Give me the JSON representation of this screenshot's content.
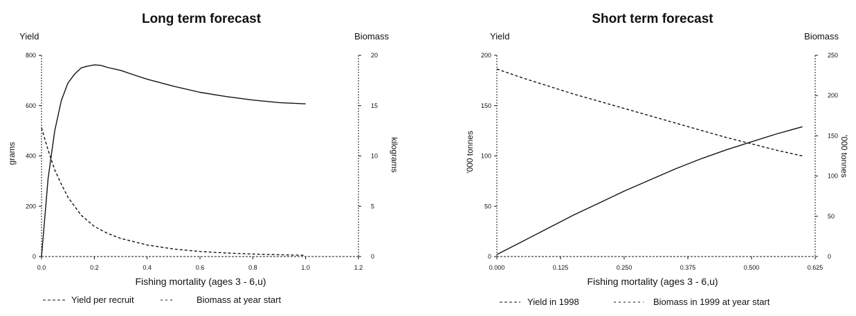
{
  "chart_data": [
    {
      "type": "line",
      "title": "Long term forecast",
      "yleft_header": "Yield",
      "yright_header": "Biomass",
      "ylabel_left": "grams",
      "ylabel_right": "kilograms",
      "xlabel": "Fishing mortality (ages 3 - 6,u)",
      "xlim": [
        0,
        1.2
      ],
      "ylim_left": [
        0,
        800
      ],
      "ylim_right": [
        0,
        20
      ],
      "xticks": [
        "0.0",
        "0.2",
        "0.4",
        "0.6",
        "0.8",
        "1.0",
        "1.2"
      ],
      "yticks_left": [
        "0",
        "200",
        "400",
        "600",
        "800"
      ],
      "yticks_right": [
        "0",
        "5",
        "10",
        "15",
        "20"
      ],
      "grid": false,
      "legend_position": "bottom",
      "series": [
        {
          "name": "Yield per recruit",
          "axis": "left",
          "style": "solid",
          "x": [
            0,
            0.025,
            0.05,
            0.075,
            0.1,
            0.125,
            0.15,
            0.175,
            0.2,
            0.225,
            0.25,
            0.3,
            0.35,
            0.4,
            0.5,
            0.6,
            0.7,
            0.8,
            0.9,
            1.0
          ],
          "y": [
            0,
            310,
            500,
            620,
            690,
            725,
            750,
            757,
            762,
            760,
            752,
            740,
            722,
            705,
            677,
            653,
            636,
            622,
            612,
            607
          ]
        },
        {
          "name": "Biomass at year start",
          "axis": "right",
          "style": "dashed",
          "x": [
            0,
            0.025,
            0.05,
            0.075,
            0.1,
            0.15,
            0.2,
            0.25,
            0.3,
            0.4,
            0.5,
            0.6,
            0.7,
            0.8,
            0.9,
            1.0
          ],
          "y": [
            12.8,
            10.6,
            8.6,
            7.2,
            5.9,
            4.1,
            3.0,
            2.3,
            1.8,
            1.15,
            0.75,
            0.5,
            0.35,
            0.25,
            0.18,
            0.12
          ]
        }
      ]
    },
    {
      "type": "line",
      "title": "Short term forecast",
      "yleft_header": "Yield",
      "yright_header": "Biomass",
      "ylabel_left": "'000 tonnes",
      "ylabel_right": "'000 tonnes",
      "xlabel": "Fishing mortality (ages 3 - 6,u)",
      "xlim": [
        0,
        0.625
      ],
      "ylim_left": [
        0,
        200
      ],
      "ylim_right": [
        0,
        250
      ],
      "xticks": [
        "0.000",
        "0.125",
        "0.250",
        "0.375",
        "0.500",
        "0.625"
      ],
      "yticks_left": [
        "0",
        "50",
        "100",
        "150",
        "200"
      ],
      "yticks_right": [
        "0",
        "50",
        "100",
        "150",
        "200",
        "250"
      ],
      "grid": false,
      "legend_position": "bottom",
      "series": [
        {
          "name": "Yield in 1998",
          "axis": "left",
          "style": "solid",
          "x": [
            0,
            0.05,
            0.1,
            0.15,
            0.2,
            0.25,
            0.3,
            0.35,
            0.4,
            0.45,
            0.5,
            0.55,
            0.6
          ],
          "y": [
            2,
            15,
            28,
            41,
            53,
            65,
            76,
            87,
            97,
            106,
            114,
            122,
            129
          ]
        },
        {
          "name": "Biomass in 1999 at year start",
          "axis": "right",
          "style": "dashed",
          "x": [
            0,
            0.05,
            0.1,
            0.15,
            0.2,
            0.25,
            0.3,
            0.35,
            0.4,
            0.45,
            0.5,
            0.55,
            0.6
          ],
          "y": [
            233,
            222,
            212,
            202,
            193,
            184,
            175,
            166,
            157,
            148,
            140,
            132,
            125
          ]
        }
      ]
    }
  ]
}
